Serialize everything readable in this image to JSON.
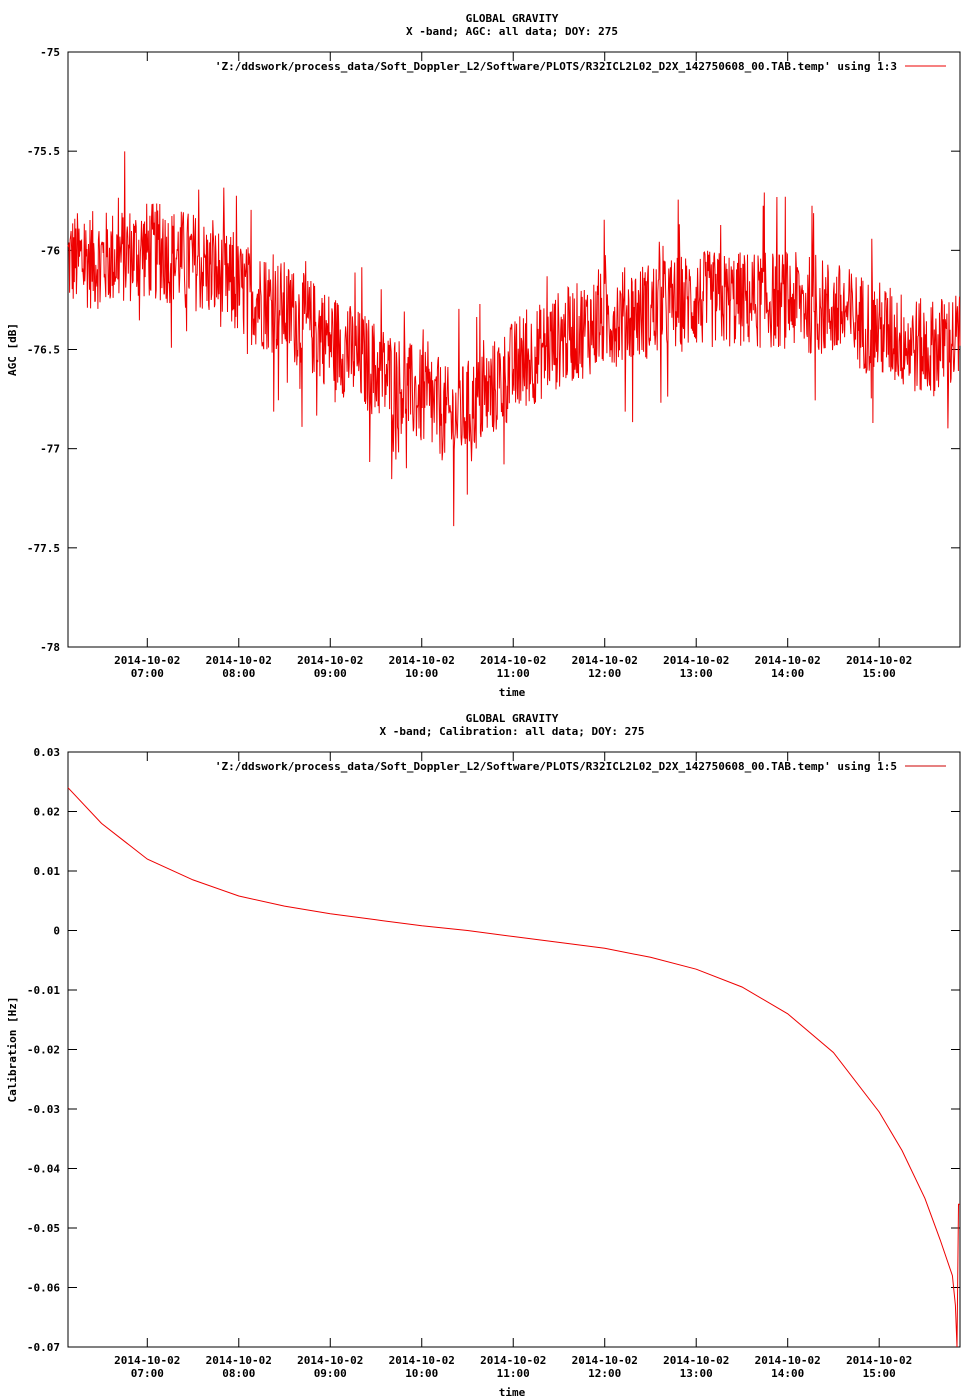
{
  "chart_data": [
    {
      "type": "line",
      "title": "GLOBAL GRAVITY",
      "subtitle": "X -band; AGC: all data; DOY: 275",
      "xlabel": "time",
      "ylabel": "AGC [dB]",
      "ylim": [
        -78,
        -75
      ],
      "xlim": [
        "2014-10-02 06:08",
        "2014-10-02 15:53"
      ],
      "yticks": [
        -75,
        -75.5,
        -76,
        -76.5,
        -77,
        -77.5,
        -78
      ],
      "xtick_date": "2014-10-02",
      "xticks": [
        "07:00",
        "08:00",
        "09:00",
        "10:00",
        "11:00",
        "12:00",
        "13:00",
        "14:00",
        "15:00"
      ],
      "legend": "top-right",
      "grid": false,
      "series": [
        {
          "name": "'Z:/ddswork/process_data/Soft_Doppler_L2/Software/PLOTS/R32ICL2L02_D2X_142750608_00.TAB.temp' using 1:3",
          "color": "#ee0000",
          "x": [
            "06:08",
            "06:30",
            "07:00",
            "07:30",
            "08:00",
            "08:30",
            "09:00",
            "09:30",
            "10:00",
            "10:20",
            "10:40",
            "11:00",
            "11:30",
            "12:00",
            "12:30",
            "13:00",
            "13:30",
            "14:00",
            "14:30",
            "15:00",
            "15:30",
            "15:53"
          ],
          "values": [
            -76.05,
            -76.05,
            -76.0,
            -76.05,
            -76.2,
            -76.3,
            -76.45,
            -76.6,
            -76.75,
            -76.85,
            -76.75,
            -76.6,
            -76.45,
            -76.35,
            -76.3,
            -76.25,
            -76.25,
            -76.25,
            -76.3,
            -76.4,
            -76.5,
            -76.45
          ],
          "noise_amplitude": 0.25
        }
      ]
    },
    {
      "type": "line",
      "title": "GLOBAL GRAVITY",
      "subtitle": "X -band; Calibration: all data; DOY: 275",
      "xlabel": "time",
      "ylabel": "Calibration [Hz]",
      "ylim": [
        -0.07,
        0.03
      ],
      "xlim": [
        "2014-10-02 06:08",
        "2014-10-02 15:53"
      ],
      "yticks": [
        0.03,
        0.02,
        0.01,
        0,
        -0.01,
        -0.02,
        -0.03,
        -0.04,
        -0.05,
        -0.06,
        -0.07
      ],
      "xtick_date": "2014-10-02",
      "xticks": [
        "07:00",
        "08:00",
        "09:00",
        "10:00",
        "11:00",
        "12:00",
        "13:00",
        "14:00",
        "15:00"
      ],
      "legend": "top-right",
      "grid": false,
      "series": [
        {
          "name": "'Z:/ddswork/process_data/Soft_Doppler_L2/Software/PLOTS/R32ICL2L02_D2X_142750608_00.TAB.temp' using 1:5",
          "color": "#cc0000",
          "x": [
            "06:08",
            "06:30",
            "07:00",
            "07:30",
            "08:00",
            "08:30",
            "09:00",
            "09:30",
            "10:00",
            "10:30",
            "11:00",
            "11:30",
            "12:00",
            "12:30",
            "13:00",
            "13:30",
            "14:00",
            "14:30",
            "15:00",
            "15:15",
            "15:30",
            "15:40",
            "15:48",
            "15:50",
            "15:51",
            "15:52",
            "15:53"
          ],
          "values": [
            0.024,
            0.018,
            0.012,
            0.0085,
            0.0058,
            0.0041,
            0.0028,
            0.0018,
            0.0008,
            0.0,
            -0.001,
            -0.002,
            -0.003,
            -0.0045,
            -0.0065,
            -0.0095,
            -0.014,
            -0.0205,
            -0.0305,
            -0.037,
            -0.045,
            -0.052,
            -0.058,
            -0.063,
            -0.07,
            -0.046,
            -0.046
          ]
        }
      ]
    }
  ]
}
